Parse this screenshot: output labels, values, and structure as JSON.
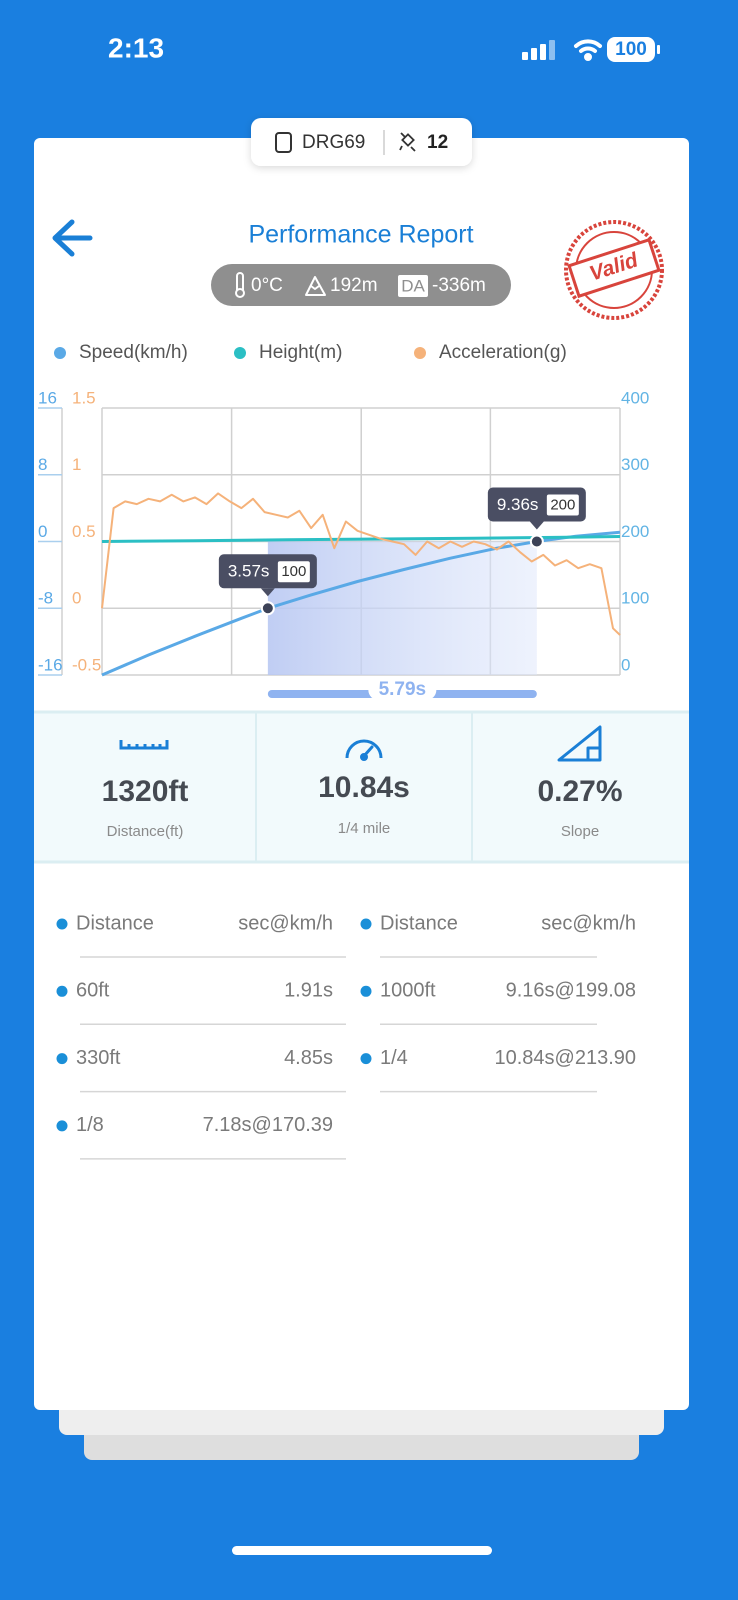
{
  "status_bar": {
    "time": "2:13",
    "battery": "100"
  },
  "device": {
    "name": "DRG69",
    "satellites": "12"
  },
  "header": {
    "title": "Performance Report",
    "stamp": "Valid"
  },
  "conditions": {
    "temperature": "0°C",
    "altitude": "192m",
    "da_badge": "DA",
    "density_altitude": "-336m"
  },
  "chart": {
    "type": "line",
    "series": [
      {
        "name": "Speed(km/h)",
        "color": "#5aa9e6",
        "axis": "y2",
        "x": [
          0,
          1,
          2,
          3,
          3.57,
          4.5,
          5.5,
          6.5,
          7.5,
          8.5,
          9.36,
          10.2,
          11.15
        ],
        "values": [
          0,
          30,
          58,
          85,
          100,
          120,
          140,
          158,
          175,
          190,
          200,
          208,
          214
        ]
      },
      {
        "name": "Height(m)",
        "color": "#2bbfc4",
        "axis": "y",
        "x": [
          0,
          2,
          4,
          6,
          8,
          10,
          11.15
        ],
        "values": [
          0,
          0.1,
          0.2,
          0.3,
          0.4,
          0.5,
          0.6
        ]
      },
      {
        "name": "Acceleration(g)",
        "color": "#f5b27a",
        "axis": "y3",
        "x": [
          0,
          0.25,
          0.5,
          0.75,
          1,
          1.25,
          1.5,
          1.75,
          2,
          2.25,
          2.5,
          2.75,
          3,
          3.25,
          3.5,
          3.75,
          4,
          4.25,
          4.5,
          4.75,
          5,
          5.25,
          5.5,
          5.75,
          6,
          6.25,
          6.5,
          6.75,
          7,
          7.25,
          7.5,
          7.75,
          8,
          8.25,
          8.5,
          8.75,
          9,
          9.25,
          9.5,
          9.75,
          10,
          10.25,
          10.5,
          10.75,
          11,
          11.15
        ],
        "values": [
          0,
          0.75,
          0.8,
          0.78,
          0.82,
          0.8,
          0.85,
          0.8,
          0.83,
          0.78,
          0.86,
          0.8,
          0.75,
          0.82,
          0.72,
          0.7,
          0.68,
          0.73,
          0.6,
          0.7,
          0.45,
          0.65,
          0.58,
          0.55,
          0.52,
          0.5,
          0.48,
          0.4,
          0.5,
          0.45,
          0.5,
          0.46,
          0.5,
          0.48,
          0.44,
          0.5,
          0.42,
          0.35,
          0.4,
          0.32,
          0.36,
          0.3,
          0.33,
          0.3,
          -0.15,
          -0.2
        ]
      }
    ],
    "xlim": [
      0,
      11.15
    ],
    "xticks": [
      0,
      2.79,
      5.58,
      8.36,
      11.15
    ],
    "ylim": [
      -16,
      16
    ],
    "yticks": [
      16,
      8,
      0,
      -8,
      -16
    ],
    "y3lim": [
      -0.5,
      1.5
    ],
    "y3ticks": [
      1.5,
      1,
      0.5,
      0,
      -0.5
    ],
    "y2lim": [
      0,
      400
    ],
    "y2ticks": [
      400,
      300,
      200,
      100,
      0
    ],
    "grid": true,
    "markers": [
      {
        "time": {
          "value": 3.57,
          "label": "3.57s"
        },
        "speed": 100
      },
      {
        "time": {
          "value": 9.36,
          "label": "9.36s"
        },
        "speed": 200
      }
    ],
    "span": {
      "value": 5.79,
      "label": "5.79s"
    }
  },
  "stats": [
    {
      "value": "1320ft",
      "label": "Distance(ft)"
    },
    {
      "value": "10.84s",
      "label": "1/4 mile"
    },
    {
      "value": "0.27%",
      "label": "Slope"
    }
  ],
  "tables": [
    {
      "header": [
        "Distance",
        "sec@km/h"
      ],
      "rows": [
        [
          "60ft",
          "1.91s"
        ],
        [
          "330ft",
          "4.85s"
        ],
        [
          "1/8",
          "7.18s@170.39"
        ]
      ]
    },
    {
      "header": [
        "Distance",
        "sec@km/h"
      ],
      "rows": [
        [
          "1000ft",
          "9.16s@199.08"
        ],
        [
          "1/4",
          "10.84s@213.90"
        ]
      ]
    }
  ]
}
